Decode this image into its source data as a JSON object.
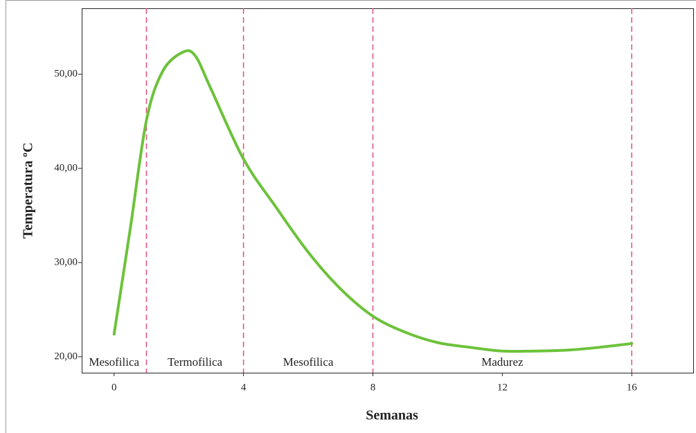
{
  "chart_data": {
    "type": "line",
    "x_label": "Semanas",
    "y_label": "Temperatura ºC",
    "x": [
      0,
      0.5,
      1,
      1.5,
      2.1,
      2.5,
      3,
      4,
      5,
      6,
      7,
      8,
      9,
      10,
      11,
      12,
      13,
      14,
      15,
      16
    ],
    "series": [
      {
        "name": "Temperatura",
        "color": "#6cc23a",
        "values": [
          22.4,
          33.6,
          45.1,
          50.3,
          52.3,
          52.0,
          48.4,
          41.0,
          35.9,
          31.1,
          27.2,
          24.3,
          22.6,
          21.5,
          21.0,
          20.6,
          20.6,
          20.7,
          21.0,
          21.4
        ]
      }
    ],
    "xlim": [
      -1,
      17.9
    ],
    "ylim": [
      18.3,
      57
    ],
    "xticks": [
      0,
      4,
      8,
      12,
      16
    ],
    "yticks": [
      {
        "value": 20,
        "label": "20,00"
      },
      {
        "value": 30,
        "label": "30,00"
      },
      {
        "value": 40,
        "label": "40,00"
      },
      {
        "value": 50,
        "label": "50,00"
      }
    ],
    "vlines": [
      1,
      4,
      8,
      16
    ],
    "vline_color": "#e0507a",
    "phases": [
      "Mesofilica",
      "Termofilica",
      "Mesofilica",
      "Madurez"
    ]
  }
}
